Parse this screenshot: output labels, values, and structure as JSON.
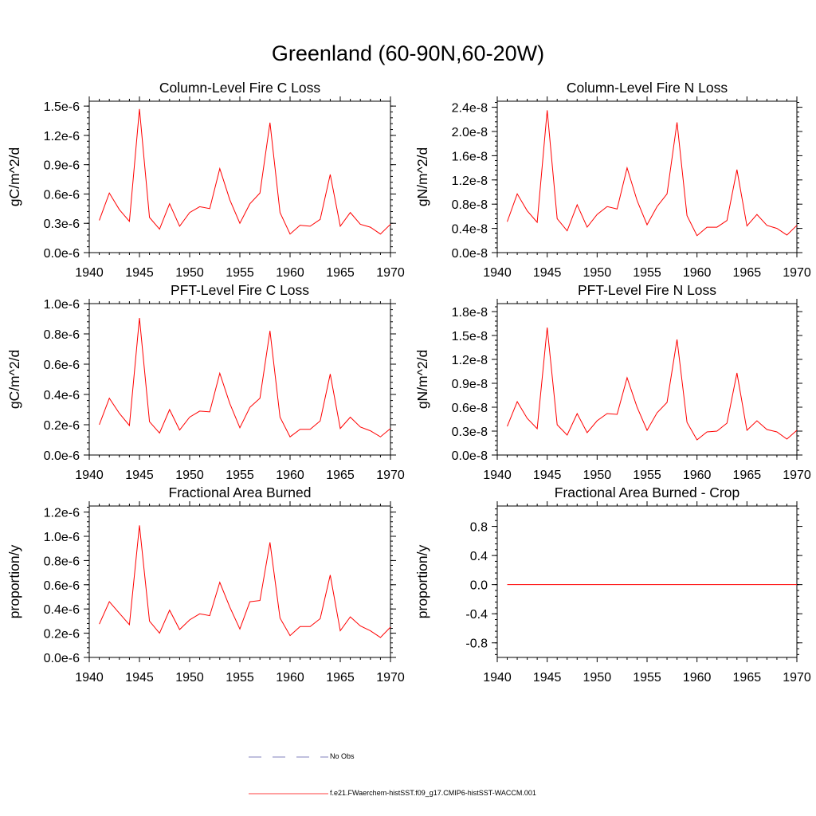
{
  "main_title": "Greenland (60-90N,60-20W)",
  "colors": {
    "series": "#ff0000",
    "no_obs": "#5a5aa8",
    "axis": "#000000"
  },
  "legend": {
    "items": [
      {
        "label": "No Obs",
        "style": "dashed",
        "color": "#5a5aa8"
      },
      {
        "label": "f.e21.FWaerchem-histSST.f09_g17.CMIP6-histSST-WACCM.001",
        "style": "solid",
        "color": "#ff0000"
      }
    ]
  },
  "chart_data": [
    {
      "type": "line",
      "title": "Column-Level Fire C Loss",
      "ylabel": "gC/m^2/d",
      "xlim": [
        1940,
        1970
      ],
      "ylim": [
        0,
        1.55e-06
      ],
      "xticks": [
        1940,
        1945,
        1950,
        1955,
        1960,
        1965,
        1970
      ],
      "yticks": [
        0,
        3e-07,
        6e-07,
        9e-07,
        1.2e-06,
        1.5e-06
      ],
      "ytick_labels": [
        "0.0e-6",
        "0.3e-6",
        "0.6e-6",
        "0.9e-6",
        "1.2e-6",
        "1.5e-6"
      ],
      "x": [
        1941,
        1942,
        1943,
        1944,
        1945,
        1946,
        1947,
        1948,
        1949,
        1950,
        1951,
        1952,
        1953,
        1954,
        1955,
        1956,
        1957,
        1958,
        1959,
        1960,
        1961,
        1962,
        1963,
        1964,
        1965,
        1966,
        1967,
        1968,
        1969,
        1970
      ],
      "series": [
        {
          "values": [
            3.3e-07,
            6.1e-07,
            4.4e-07,
            3.2e-07,
            1.47e-06,
            3.6e-07,
            2.4e-07,
            5e-07,
            2.7e-07,
            4.1e-07,
            4.7e-07,
            4.5e-07,
            8.6e-07,
            5.4e-07,
            3e-07,
            5e-07,
            6.1e-07,
            1.33e-06,
            4.1e-07,
            1.9e-07,
            2.8e-07,
            2.7e-07,
            3.4e-07,
            8e-07,
            2.7e-07,
            4.1e-07,
            2.9e-07,
            2.6e-07,
            1.9e-07,
            2.9e-07
          ]
        }
      ]
    },
    {
      "type": "line",
      "title": "Column-Level Fire N Loss",
      "ylabel": "gN/m^2/d",
      "xlim": [
        1940,
        1970
      ],
      "ylim": [
        0,
        2.5e-08
      ],
      "xticks": [
        1940,
        1945,
        1950,
        1955,
        1960,
        1965,
        1970
      ],
      "yticks": [
        0,
        4e-09,
        8e-09,
        1.2e-08,
        1.6e-08,
        2e-08,
        2.4e-08
      ],
      "ytick_labels": [
        "0.0e-8",
        "0.4e-8",
        "0.8e-8",
        "1.2e-8",
        "1.6e-8",
        "2.0e-8",
        "2.4e-8"
      ],
      "x": [
        1941,
        1942,
        1943,
        1944,
        1945,
        1946,
        1947,
        1948,
        1949,
        1950,
        1951,
        1952,
        1953,
        1954,
        1955,
        1956,
        1957,
        1958,
        1959,
        1960,
        1961,
        1962,
        1963,
        1964,
        1965,
        1966,
        1967,
        1968,
        1969,
        1970
      ],
      "series": [
        {
          "values": [
            5.1e-09,
            9.7e-09,
            6.9e-09,
            5e-09,
            2.35e-08,
            5.6e-09,
            3.6e-09,
            7.9e-09,
            4.2e-09,
            6.3e-09,
            7.6e-09,
            7.2e-09,
            1.4e-08,
            8.6e-09,
            4.6e-09,
            7.6e-09,
            9.7e-09,
            2.15e-08,
            6.1e-09,
            2.8e-09,
            4.2e-09,
            4.2e-09,
            5.3e-09,
            1.37e-08,
            4.4e-09,
            6.3e-09,
            4.5e-09,
            4e-09,
            2.9e-09,
            4.5e-09
          ]
        }
      ]
    },
    {
      "type": "line",
      "title": "PFT-Level Fire C Loss",
      "ylabel": "gC/m^2/d",
      "xlim": [
        1940,
        1970
      ],
      "ylim": [
        0,
        1e-06
      ],
      "xticks": [
        1940,
        1945,
        1950,
        1955,
        1960,
        1965,
        1970
      ],
      "yticks": [
        0,
        2e-07,
        4e-07,
        6e-07,
        8e-07,
        1e-06
      ],
      "ytick_labels": [
        "0.0e-6",
        "0.2e-6",
        "0.4e-6",
        "0.6e-6",
        "0.8e-6",
        "1.0e-6"
      ],
      "x": [
        1941,
        1942,
        1943,
        1944,
        1945,
        1946,
        1947,
        1948,
        1949,
        1950,
        1951,
        1952,
        1953,
        1954,
        1955,
        1956,
        1957,
        1958,
        1959,
        1960,
        1961,
        1962,
        1963,
        1964,
        1965,
        1966,
        1967,
        1968,
        1969,
        1970
      ],
      "series": [
        {
          "values": [
            2e-07,
            3.75e-07,
            2.75e-07,
            1.95e-07,
            9.05e-07,
            2.2e-07,
            1.45e-07,
            3e-07,
            1.65e-07,
            2.5e-07,
            2.9e-07,
            2.85e-07,
            5.4e-07,
            3.4e-07,
            1.8e-07,
            3.15e-07,
            3.75e-07,
            8.2e-07,
            2.5e-07,
            1.2e-07,
            1.7e-07,
            1.7e-07,
            2.25e-07,
            5.35e-07,
            1.75e-07,
            2.5e-07,
            1.85e-07,
            1.6e-07,
            1.2e-07,
            1.75e-07
          ]
        }
      ]
    },
    {
      "type": "line",
      "title": "PFT-Level Fire N Loss",
      "ylabel": "gN/m^2/d",
      "xlim": [
        1940,
        1970
      ],
      "ylim": [
        0,
        1.9e-08
      ],
      "xticks": [
        1940,
        1945,
        1950,
        1955,
        1960,
        1965,
        1970
      ],
      "yticks": [
        0,
        3e-09,
        6e-09,
        9e-09,
        1.2e-08,
        1.5e-08,
        1.8e-08
      ],
      "ytick_labels": [
        "0.0e-8",
        "0.3e-8",
        "0.6e-8",
        "0.9e-8",
        "1.2e-8",
        "1.5e-8",
        "1.8e-8"
      ],
      "x": [
        1941,
        1942,
        1943,
        1944,
        1945,
        1946,
        1947,
        1948,
        1949,
        1950,
        1951,
        1952,
        1953,
        1954,
        1955,
        1956,
        1957,
        1958,
        1959,
        1960,
        1961,
        1962,
        1963,
        1964,
        1965,
        1966,
        1967,
        1968,
        1969,
        1970
      ],
      "series": [
        {
          "values": [
            3.6e-09,
            6.7e-09,
            4.6e-09,
            3.3e-09,
            1.6e-08,
            3.8e-09,
            2.5e-09,
            5.2e-09,
            2.8e-09,
            4.3e-09,
            5.2e-09,
            5.1e-09,
            9.7e-09,
            6e-09,
            3.1e-09,
            5.3e-09,
            6.6e-09,
            1.45e-08,
            4.1e-09,
            1.9e-09,
            2.9e-09,
            3e-09,
            4e-09,
            1.03e-08,
            3.1e-09,
            4.3e-09,
            3.2e-09,
            2.9e-09,
            2e-09,
            3.1e-09
          ]
        }
      ]
    },
    {
      "type": "line",
      "title": "Fractional Area Burned",
      "ylabel": "proportion/y",
      "xlim": [
        1940,
        1970
      ],
      "ylim": [
        0,
        1.25e-06
      ],
      "xticks": [
        1940,
        1945,
        1950,
        1955,
        1960,
        1965,
        1970
      ],
      "yticks": [
        0,
        2e-07,
        4e-07,
        6e-07,
        8e-07,
        1e-06,
        1.2e-06
      ],
      "ytick_labels": [
        "0.0e-6",
        "0.2e-6",
        "0.4e-6",
        "0.6e-6",
        "0.8e-6",
        "1.0e-6",
        "1.2e-6"
      ],
      "x": [
        1941,
        1942,
        1943,
        1944,
        1945,
        1946,
        1947,
        1948,
        1949,
        1950,
        1951,
        1952,
        1953,
        1954,
        1955,
        1956,
        1957,
        1958,
        1959,
        1960,
        1961,
        1962,
        1963,
        1964,
        1965,
        1966,
        1967,
        1968,
        1969,
        1970
      ],
      "series": [
        {
          "values": [
            2.75e-07,
            4.6e-07,
            3.65e-07,
            2.7e-07,
            1.09e-06,
            3e-07,
            2e-07,
            3.9e-07,
            2.3e-07,
            3.1e-07,
            3.6e-07,
            3.45e-07,
            6.2e-07,
            4.15e-07,
            2.35e-07,
            4.6e-07,
            4.7e-07,
            9.5e-07,
            3.25e-07,
            1.8e-07,
            2.55e-07,
            2.55e-07,
            3.2e-07,
            6.8e-07,
            2.2e-07,
            3.35e-07,
            2.6e-07,
            2.2e-07,
            1.65e-07,
            2.5e-07
          ]
        }
      ]
    },
    {
      "type": "line",
      "title": "Fractional Area Burned - Crop",
      "ylabel": "proportion/y",
      "xlim": [
        1940,
        1970
      ],
      "ylim": [
        -1.0,
        1.08
      ],
      "xticks": [
        1940,
        1945,
        1950,
        1955,
        1960,
        1965,
        1970
      ],
      "yticks": [
        -0.8,
        -0.4,
        0,
        0.4,
        0.8
      ],
      "ytick_labels": [
        "-0.8",
        "-0.4",
        "0.0",
        "0.4",
        "0.8"
      ],
      "x": [
        1941,
        1970
      ],
      "series": [
        {
          "values": [
            0,
            0
          ]
        }
      ]
    }
  ]
}
